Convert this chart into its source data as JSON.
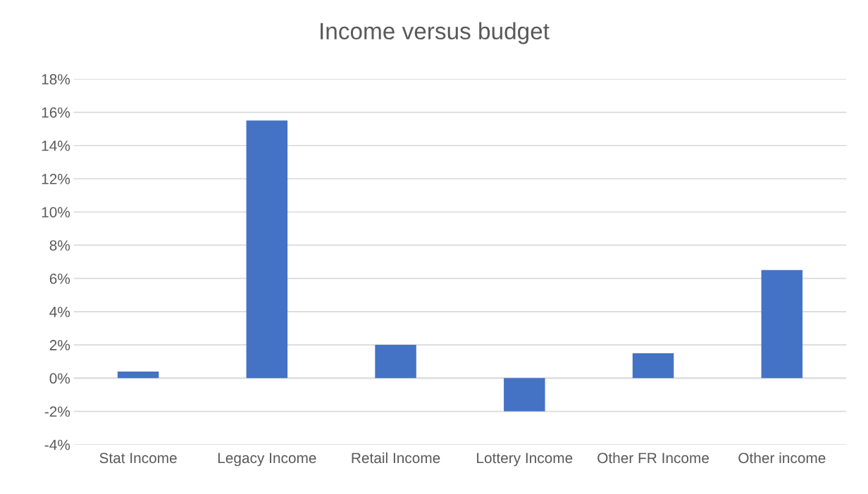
{
  "chart_data": {
    "type": "bar",
    "title": "Income versus budget",
    "categories": [
      "Stat Income",
      "Legacy Income",
      "Retail Income",
      "Lottery Income",
      "Other FR Income",
      "Other income"
    ],
    "values": [
      0.4,
      15.5,
      2.0,
      -2.0,
      1.5,
      6.5
    ],
    "color": "#4472c4",
    "ylim": [
      -4,
      18
    ],
    "yticks": [
      {
        "value": -4,
        "label": "-4%"
      },
      {
        "value": -2,
        "label": "-2%"
      },
      {
        "value": 0,
        "label": "0%"
      },
      {
        "value": 2,
        "label": "2%"
      },
      {
        "value": 4,
        "label": "4%"
      },
      {
        "value": 6,
        "label": "6%"
      },
      {
        "value": 8,
        "label": "8%"
      },
      {
        "value": 10,
        "label": "10%"
      },
      {
        "value": 12,
        "label": "12%"
      },
      {
        "value": 14,
        "label": "14%"
      },
      {
        "value": 16,
        "label": "16%"
      },
      {
        "value": 18,
        "label": "18%"
      }
    ],
    "grid": "y"
  }
}
